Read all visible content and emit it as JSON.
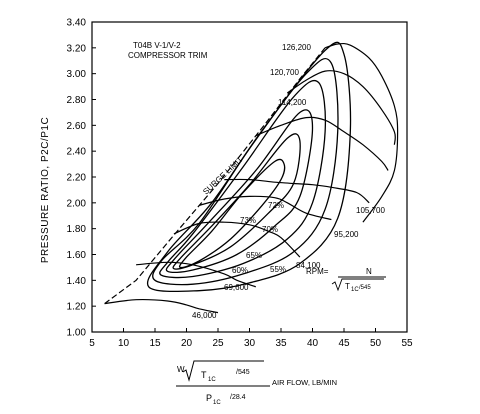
{
  "chart_data": {
    "type": "line",
    "title_lines": [
      "T04B V-1/V-2",
      "COMPRESSOR TRIM"
    ],
    "ylabel": "PRESSURE RATIO, P2C/P1C",
    "xlabel": "AIR FLOW, LB/MIN",
    "xlabel_formula": {
      "top_prefix": "W",
      "top_radicand": "T",
      "top_radicand_sub": "1C",
      "top_radicand_rest": "/545",
      "bottom": "P",
      "bottom_sub": "1C",
      "bottom_rest": "/28.4"
    },
    "rpm_formula": {
      "lhs": "RPM=",
      "num": "N",
      "den": "T",
      "den_sub": "1C",
      "den_rest": "/545"
    },
    "xlim": [
      5,
      55
    ],
    "ylim": [
      1.0,
      3.4
    ],
    "x_ticks": [
      "5",
      "10",
      "15",
      "20",
      "25",
      "30",
      "35",
      "40",
      "45",
      "50",
      "55"
    ],
    "y_ticks": [
      "1.00",
      "1.20",
      "1.40",
      "1.60",
      "1.80",
      "2.00",
      "2.20",
      "2.40",
      "2.60",
      "2.80",
      "3.00",
      "3.20",
      "3.40"
    ],
    "surge_line": {
      "label": "SURGE LIMIT",
      "points": [
        [
          7,
          1.22
        ],
        [
          12,
          1.4
        ],
        [
          18,
          1.75
        ],
        [
          25,
          2.15
        ],
        [
          32,
          2.58
        ],
        [
          38,
          2.96
        ],
        [
          42,
          3.2
        ]
      ]
    },
    "speed_lines": [
      {
        "label": "46,000",
        "points": [
          [
            7,
            1.22
          ],
          [
            12,
            1.25
          ],
          [
            17,
            1.24
          ],
          [
            20,
            1.21
          ],
          [
            22,
            1.18
          ],
          [
            25,
            1.15
          ]
        ]
      },
      {
        "label": "69,600",
        "points": [
          [
            12,
            1.52
          ],
          [
            17,
            1.54
          ],
          [
            21,
            1.52
          ],
          [
            26,
            1.45
          ],
          [
            28,
            1.4
          ],
          [
            31,
            1.35
          ]
        ]
      },
      {
        "label": "84,100",
        "points": [
          [
            18,
            1.76
          ],
          [
            22,
            1.84
          ],
          [
            26,
            1.85
          ],
          [
            30,
            1.83
          ],
          [
            33,
            1.78
          ],
          [
            35,
            1.73
          ],
          [
            38,
            1.58
          ]
        ]
      },
      {
        "label": "95,200",
        "points": [
          [
            22,
            1.98
          ],
          [
            26,
            2.03
          ],
          [
            30,
            2.05
          ],
          [
            34,
            2.04
          ],
          [
            36,
            2.0
          ],
          [
            39,
            1.92
          ],
          [
            43,
            1.87
          ]
        ]
      },
      {
        "label": "105,700",
        "points": [
          [
            26,
            2.18
          ],
          [
            30,
            2.18
          ],
          [
            34,
            2.16
          ],
          [
            37,
            2.15
          ],
          [
            40,
            2.14
          ],
          [
            43,
            2.12
          ],
          [
            47,
            2.08
          ],
          [
            49,
            2.0
          ]
        ]
      },
      {
        "label": "114,200",
        "points": [
          [
            31,
            2.52
          ],
          [
            35,
            2.6
          ],
          [
            39,
            2.66
          ],
          [
            42,
            2.64
          ],
          [
            45,
            2.55
          ],
          [
            48,
            2.45
          ],
          [
            51,
            2.32
          ],
          [
            52,
            2.25
          ]
        ]
      },
      {
        "label": "120,700",
        "points": [
          [
            36,
            2.85
          ],
          [
            39,
            2.95
          ],
          [
            42,
            3.02
          ],
          [
            45,
            3.0
          ],
          [
            48,
            2.9
          ],
          [
            51,
            2.72
          ],
          [
            53,
            2.55
          ],
          [
            53,
            2.45
          ]
        ]
      },
      {
        "label": "126,200",
        "points": [
          [
            42,
            3.2
          ],
          [
            44,
            3.23
          ],
          [
            46,
            3.22
          ],
          [
            49,
            3.12
          ],
          [
            51,
            2.98
          ],
          [
            53,
            2.75
          ],
          [
            53.5,
            2.55
          ],
          [
            53,
            2.25
          ],
          [
            51,
            2.05
          ],
          [
            48,
            1.85
          ]
        ]
      }
    ],
    "efficiency_islands": [
      {
        "label": "73%",
        "points": [
          [
            19,
            1.5
          ],
          [
            22,
            1.55
          ],
          [
            27,
            1.72
          ],
          [
            32,
            1.98
          ],
          [
            35,
            2.18
          ],
          [
            35.5,
            2.3
          ],
          [
            34,
            2.32
          ],
          [
            29,
            2.08
          ],
          [
            24,
            1.78
          ],
          [
            20,
            1.58
          ],
          [
            19,
            1.5
          ]
        ]
      },
      {
        "label": "72%",
        "points": [
          [
            18,
            1.49
          ],
          [
            21,
            1.52
          ],
          [
            27,
            1.66
          ],
          [
            33,
            1.92
          ],
          [
            37,
            2.15
          ],
          [
            38,
            2.48
          ],
          [
            36,
            2.5
          ],
          [
            30,
            2.14
          ],
          [
            24,
            1.82
          ],
          [
            19,
            1.57
          ],
          [
            18,
            1.49
          ]
        ]
      },
      {
        "label": "70%",
        "points": [
          [
            17,
            1.47
          ],
          [
            21,
            1.48
          ],
          [
            28,
            1.6
          ],
          [
            34,
            1.82
          ],
          [
            38,
            2.05
          ],
          [
            40,
            2.58
          ],
          [
            38,
            2.7
          ],
          [
            31,
            2.25
          ],
          [
            23,
            1.82
          ],
          [
            18,
            1.56
          ],
          [
            17,
            1.47
          ]
        ]
      },
      {
        "label": "65%",
        "points": [
          [
            16,
            1.44
          ],
          [
            21,
            1.43
          ],
          [
            29,
            1.53
          ],
          [
            36,
            1.72
          ],
          [
            40,
            2.0
          ],
          [
            42,
            2.55
          ],
          [
            41,
            2.93
          ],
          [
            37,
            2.82
          ],
          [
            29,
            2.28
          ],
          [
            21,
            1.76
          ],
          [
            17,
            1.54
          ],
          [
            16,
            1.44
          ]
        ]
      },
      {
        "label": "60%",
        "points": [
          [
            15,
            1.4
          ],
          [
            21,
            1.37
          ],
          [
            29,
            1.45
          ],
          [
            37,
            1.62
          ],
          [
            42,
            1.95
          ],
          [
            44,
            2.55
          ],
          [
            43,
            3.08
          ],
          [
            39,
            3.0
          ],
          [
            30,
            2.42
          ],
          [
            22,
            1.84
          ],
          [
            16,
            1.55
          ],
          [
            15,
            1.4
          ]
        ]
      },
      {
        "label": "55%",
        "points": [
          [
            14,
            1.35
          ],
          [
            22,
            1.32
          ],
          [
            30,
            1.38
          ],
          [
            38,
            1.53
          ],
          [
            44,
            1.88
          ],
          [
            46,
            2.55
          ],
          [
            45,
            3.15
          ],
          [
            42,
            3.18
          ],
          [
            32,
            2.56
          ],
          [
            24,
            2.0
          ],
          [
            17,
            1.62
          ],
          [
            14,
            1.35
          ]
        ]
      }
    ]
  }
}
